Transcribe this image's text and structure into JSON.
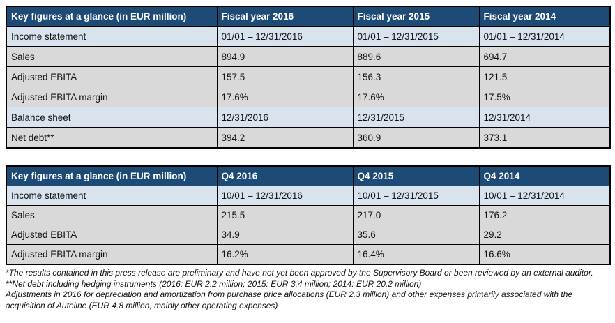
{
  "colors": {
    "header_bg": "#1e4b76",
    "header_text": "#ffffff",
    "highlight_row_bg": "#d9e3ee",
    "data_row_bg": "#d9d9d9",
    "border": "#000000",
    "text": "#111111"
  },
  "table_annual": {
    "headers": [
      "Key figures at a glance (in EUR million)",
      "Fiscal year 2016",
      "Fiscal year 2015",
      "Fiscal year 2014"
    ],
    "rows": [
      {
        "label": "Income statement",
        "values": [
          "01/01 – 12/31/2016",
          "01/01 – 12/31/2015",
          "01/01 – 12/31/2014"
        ],
        "highlight": true
      },
      {
        "label": "Sales",
        "values": [
          "894.9",
          "889.6",
          "694.7"
        ],
        "highlight": false
      },
      {
        "label": "Adjusted EBITA",
        "values": [
          "157.5",
          "156.3",
          "121.5"
        ],
        "highlight": false
      },
      {
        "label": "Adjusted EBITA margin",
        "values": [
          "17.6%",
          "17.6%",
          "17.5%"
        ],
        "highlight": false
      },
      {
        "label": "Balance sheet",
        "values": [
          "12/31/2016",
          "12/31/2015",
          "12/31/2014"
        ],
        "highlight": true
      },
      {
        "label": "Net debt**",
        "values": [
          "394.2",
          "360.9",
          "373.1"
        ],
        "highlight": false
      }
    ]
  },
  "table_quarterly": {
    "headers": [
      "Key figures at a glance (in EUR million)",
      "Q4 2016",
      "Q4 2015",
      "Q4 2014"
    ],
    "rows": [
      {
        "label": "Income statement",
        "values": [
          "10/01 – 12/31/2016",
          "10/01 – 12/31/2015",
          "10/01 – 12/31/2014"
        ],
        "highlight": true
      },
      {
        "label": "Sales",
        "values": [
          "215.5",
          "217.0",
          "176.2"
        ],
        "highlight": false
      },
      {
        "label": "Adjusted EBITA",
        "values": [
          "34.9",
          "35.6",
          "29.2"
        ],
        "highlight": false
      },
      {
        "label": "Adjusted EBITA margin",
        "values": [
          "16.2%",
          "16.4%",
          "16.6%"
        ],
        "highlight": false
      }
    ]
  },
  "footnote_lines": [
    "*The results contained in this press release are preliminary and have not yet been approved by the Supervisory Board or been reviewed by an external auditor.",
    "**Net debt including hedging instruments (2016: EUR 2.2 million; 2015: EUR 3.4 million; 2014: EUR 20.2 million)",
    "Adjustments in 2016 for depreciation and amortization from purchase price allocations (EUR 2.3 million) and other expenses primarily associated with the",
    "acquisition of Autoline (EUR 4.8 million, mainly other operating expenses)"
  ]
}
